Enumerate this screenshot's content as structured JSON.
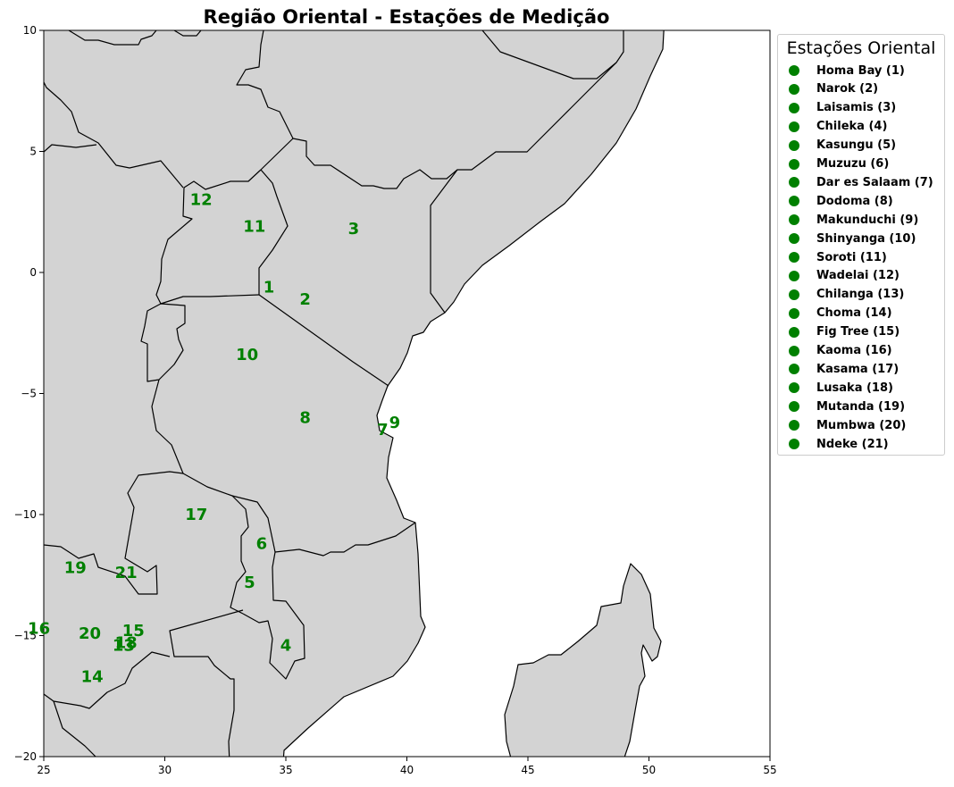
{
  "title": "Região Oriental - Estações de Medição",
  "map": {
    "type": "station-map",
    "xlim": [
      25,
      55
    ],
    "ylim": [
      -20,
      10
    ],
    "xticks": [
      25,
      30,
      35,
      40,
      45,
      50,
      55
    ],
    "yticks": [
      10,
      5,
      0,
      -5,
      -10,
      -15,
      -20
    ],
    "land_color": "#d3d3d3",
    "border_color": "#000000",
    "station_color": "#008000",
    "legend_position": "outside-right"
  },
  "legend": {
    "title": "Estações Oriental",
    "items": [
      "Homa Bay (1)",
      "Narok (2)",
      "Laisamis (3)",
      "Chileka (4)",
      "Kasungu (5)",
      "Muzuzu (6)",
      "Dar es Salaam (7)",
      "Dodoma (8)",
      "Makunduchi (9)",
      "Shinyanga (10)",
      "Soroti (11)",
      "Wadelai (12)",
      "Chilanga (13)",
      "Choma (14)",
      "Fig Tree (15)",
      "Kaoma (16)",
      "Kasama (17)",
      "Lusaka (18)",
      "Mutanda (19)",
      "Mumbwa (20)",
      "Ndeke (21)"
    ]
  },
  "stations": [
    {
      "id": "1",
      "lon": 34.3,
      "lat": -0.6
    },
    {
      "id": "2",
      "lon": 35.8,
      "lat": -1.1
    },
    {
      "id": "3",
      "lon": 37.8,
      "lat": 1.8
    },
    {
      "id": "4",
      "lon": 35.0,
      "lat": -15.4
    },
    {
      "id": "5",
      "lon": 33.5,
      "lat": -12.8
    },
    {
      "id": "6",
      "lon": 34.0,
      "lat": -11.2
    },
    {
      "id": "7",
      "lon": 39.0,
      "lat": -6.5
    },
    {
      "id": "8",
      "lon": 35.8,
      "lat": -6.0
    },
    {
      "id": "9",
      "lon": 39.5,
      "lat": -6.2
    },
    {
      "id": "10",
      "lon": 33.4,
      "lat": -3.4
    },
    {
      "id": "11",
      "lon": 33.7,
      "lat": 1.9
    },
    {
      "id": "12",
      "lon": 31.5,
      "lat": 3.0
    },
    {
      "id": "13",
      "lon": 28.3,
      "lat": -15.4
    },
    {
      "id": "14",
      "lon": 27.0,
      "lat": -16.7
    },
    {
      "id": "15",
      "lon": 28.7,
      "lat": -14.8
    },
    {
      "id": "16",
      "lon": 24.8,
      "lat": -14.7
    },
    {
      "id": "17",
      "lon": 31.3,
      "lat": -10.0
    },
    {
      "id": "18",
      "lon": 28.4,
      "lat": -15.3
    },
    {
      "id": "19",
      "lon": 26.3,
      "lat": -12.2
    },
    {
      "id": "20",
      "lon": 26.9,
      "lat": -14.9
    },
    {
      "id": "21",
      "lon": 28.4,
      "lat": -12.4
    }
  ]
}
